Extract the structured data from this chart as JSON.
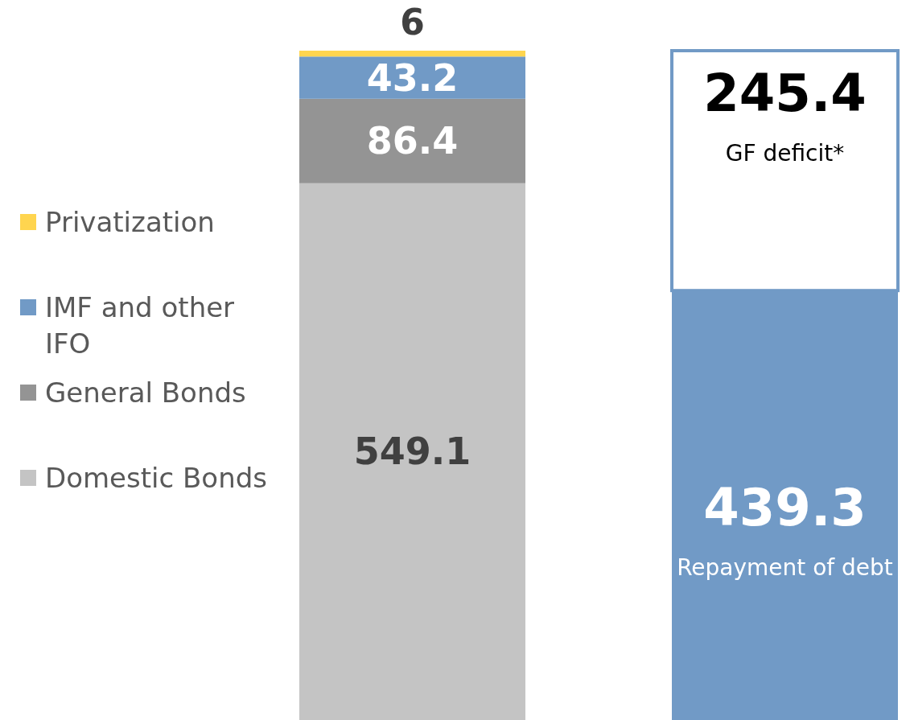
{
  "chart_data": {
    "type": "bar",
    "stacked": true,
    "categories": [
      null,
      null
    ],
    "data_labels": true,
    "legend": "left",
    "series": [
      {
        "name": "Domestic Bonds",
        "color": "#c4c4c4",
        "values": [
          549.1,
          null
        ]
      },
      {
        "name": "General Bonds",
        "color": "#949494",
        "values": [
          86.4,
          null
        ]
      },
      {
        "name": "IMF and other IFO",
        "color": "#719ac6",
        "values": [
          43.2,
          null
        ]
      },
      {
        "name": "Privatization",
        "color": "#ffd54f",
        "values": [
          6,
          null
        ]
      },
      {
        "name": "Repayment of debt",
        "color": "#719ac6",
        "values": [
          null,
          439.3
        ]
      },
      {
        "name": "GF deficit*",
        "color": "#ffffff",
        "values": [
          null,
          245.4
        ]
      }
    ]
  }
}
